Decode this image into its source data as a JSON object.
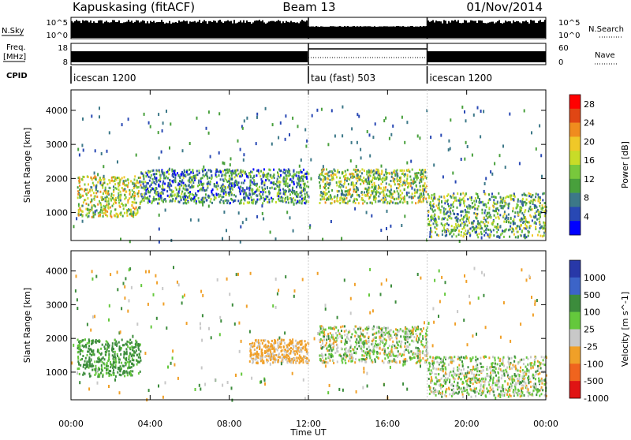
{
  "header": {
    "station": "Kapuskasing (fitACF)",
    "beam": "Beam 13",
    "date": "01/Nov/2014"
  },
  "labels": {
    "nsky": "N.Sky",
    "nsearch": "N.Search",
    "freq": "Freq.",
    "mhz": "[MHz]",
    "nave": "Nave",
    "cpid": "CPID"
  },
  "strip_ticks": {
    "noise_left": [
      "10^5",
      "10^0"
    ],
    "noise_right": [
      "10^5",
      "10^0"
    ],
    "freq_left": [
      "18",
      "8"
    ],
    "freq_right": [
      "60",
      "0"
    ]
  },
  "cpid_segments": [
    {
      "label": "icescan 1200",
      "start_hour": 0,
      "end_hour": 12
    },
    {
      "label": "tau (fast) 503",
      "start_hour": 12,
      "end_hour": 18
    },
    {
      "label": "icescan 1200",
      "start_hour": 18,
      "end_hour": 24
    }
  ],
  "chart_data": [
    {
      "type": "heatmap",
      "title": "",
      "xlabel": "Time UT",
      "ylabel": "Slant Range [km]",
      "xlim": [
        0,
        24
      ],
      "ylim": [
        180,
        4600
      ],
      "x_ticks": [
        "00:00",
        "04:00",
        "08:00",
        "12:00",
        "16:00",
        "20:00",
        "00:00"
      ],
      "y_ticks": [
        "1000",
        "2000",
        "3000",
        "4000"
      ],
      "colorbar": {
        "label": "Power [dB]",
        "ticks": [
          "4",
          "8",
          "12",
          "16",
          "20",
          "24",
          "28"
        ],
        "range": [
          0,
          30
        ],
        "colors": [
          "#0000ff",
          "#2848b4",
          "#3c7888",
          "#48a03c",
          "#78c83c",
          "#c8dc28",
          "#f0c828",
          "#f08c1e",
          "#e04614",
          "#ff0000"
        ]
      },
      "features": [
        {
          "start_hour": 0.3,
          "end_hour": 3.5,
          "range_low_km": 900,
          "range_high_km": 2100,
          "level": 16
        },
        {
          "start_hour": 3.5,
          "end_hour": 12,
          "range_low_km": 1300,
          "range_high_km": 2300,
          "level": 9
        },
        {
          "start_hour": 12.5,
          "end_hour": 18,
          "range_low_km": 1300,
          "range_high_km": 2300,
          "level": 14
        },
        {
          "start_hour": 18,
          "end_hour": 24,
          "range_low_km": 300,
          "range_high_km": 1600,
          "level": 12
        }
      ]
    },
    {
      "type": "heatmap",
      "title": "",
      "xlabel": "Time UT",
      "ylabel": "Slant Range [km]",
      "xlim": [
        0,
        24
      ],
      "ylim": [
        180,
        4600
      ],
      "x_ticks": [
        "00:00",
        "04:00",
        "08:00",
        "12:00",
        "16:00",
        "20:00",
        "00:00"
      ],
      "y_ticks": [
        "1000",
        "2000",
        "3000",
        "4000"
      ],
      "colorbar": {
        "label": "Velocity [m s^-1]",
        "ticks": [
          "1000",
          "500",
          "100",
          "25",
          "-25",
          "-100",
          "-500",
          "-1000"
        ],
        "colors": [
          "#2838a8",
          "#3c64c8",
          "#3c8c3c",
          "#64c83c",
          "#c8c8c8",
          "#f0a028",
          "#f0641e",
          "#e01414"
        ]
      },
      "features": [
        {
          "start_hour": 0.3,
          "end_hour": 3.5,
          "range_low_km": 900,
          "range_high_km": 2000,
          "velocity": 100
        },
        {
          "start_hour": 9,
          "end_hour": 12,
          "range_low_km": 1300,
          "range_high_km": 2000,
          "velocity": -100
        },
        {
          "start_hour": 12.5,
          "end_hour": 18,
          "range_low_km": 1300,
          "range_high_km": 2400,
          "velocity": 0
        },
        {
          "start_hour": 18,
          "end_hour": 24,
          "range_low_km": 300,
          "range_high_km": 1500,
          "velocity": 0
        }
      ]
    }
  ]
}
